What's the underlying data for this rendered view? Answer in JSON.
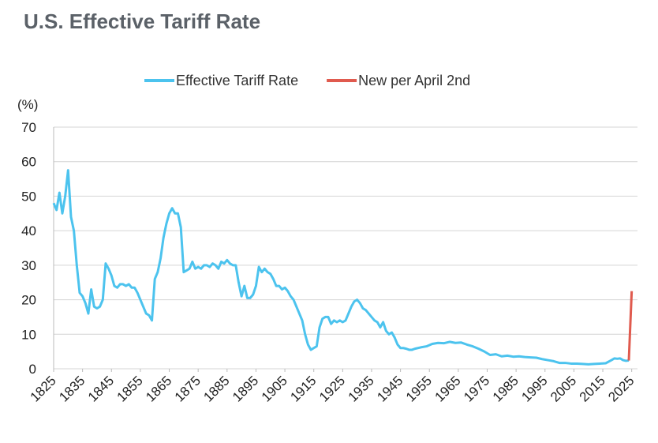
{
  "chart_data": {
    "type": "line",
    "title": "U.S. Effective Tariff Rate",
    "y_label": "(%)",
    "xlim": [
      1825,
      2027
    ],
    "ylim": [
      0,
      70
    ],
    "xticks": [
      1825,
      1835,
      1845,
      1855,
      1865,
      1875,
      1885,
      1895,
      1905,
      1915,
      1925,
      1935,
      1945,
      1955,
      1965,
      1975,
      1985,
      1995,
      2005,
      2015,
      2025
    ],
    "yticks": [
      0,
      10,
      20,
      30,
      40,
      50,
      60,
      70
    ],
    "grid": true,
    "legend": "top",
    "series": [
      {
        "name": "Effective Tariff Rate",
        "color": "#4cc3ee",
        "x": [
          1825,
          1826,
          1827,
          1828,
          1829,
          1830,
          1831,
          1832,
          1833,
          1834,
          1835,
          1836,
          1837,
          1838,
          1839,
          1840,
          1841,
          1842,
          1843,
          1844,
          1845,
          1846,
          1847,
          1848,
          1849,
          1850,
          1851,
          1852,
          1853,
          1854,
          1855,
          1856,
          1857,
          1858,
          1859,
          1860,
          1861,
          1862,
          1863,
          1864,
          1865,
          1866,
          1867,
          1868,
          1869,
          1870,
          1871,
          1872,
          1873,
          1874,
          1875,
          1876,
          1877,
          1878,
          1879,
          1880,
          1881,
          1882,
          1883,
          1884,
          1885,
          1886,
          1887,
          1888,
          1889,
          1890,
          1891,
          1892,
          1893,
          1894,
          1895,
          1896,
          1897,
          1898,
          1899,
          1900,
          1901,
          1902,
          1903,
          1904,
          1905,
          1906,
          1907,
          1908,
          1909,
          1910,
          1911,
          1912,
          1913,
          1914,
          1915,
          1916,
          1917,
          1918,
          1919,
          1920,
          1921,
          1922,
          1923,
          1924,
          1925,
          1926,
          1927,
          1928,
          1929,
          1930,
          1931,
          1932,
          1933,
          1934,
          1935,
          1936,
          1937,
          1938,
          1939,
          1940,
          1941,
          1942,
          1943,
          1944,
          1945,
          1946,
          1947,
          1948,
          1949,
          1950,
          1952,
          1954,
          1956,
          1958,
          1960,
          1962,
          1964,
          1966,
          1968,
          1970,
          1972,
          1974,
          1976,
          1978,
          1980,
          1982,
          1984,
          1986,
          1988,
          1990,
          1992,
          1994,
          1996,
          1998,
          2000,
          2002,
          2004,
          2006,
          2008,
          2010,
          2012,
          2014,
          2016,
          2018,
          2019,
          2020,
          2021,
          2022,
          2023,
          2024
        ],
        "values": [
          48,
          46,
          51,
          45,
          50,
          57.5,
          44,
          40,
          30,
          22,
          21,
          19,
          16,
          23,
          18,
          17.5,
          18,
          20,
          30.5,
          29,
          27,
          24,
          23.5,
          24.5,
          24.5,
          24,
          24.5,
          23.5,
          23.5,
          22,
          20,
          18,
          16,
          15.5,
          14,
          26,
          28,
          32,
          38,
          42,
          45,
          46.5,
          45,
          45,
          41,
          28,
          28.5,
          29,
          31,
          29,
          29.5,
          29,
          30,
          30,
          29.5,
          30.5,
          30,
          29,
          31,
          30.5,
          31.5,
          30.5,
          30,
          30,
          25,
          21,
          24,
          20.5,
          20.5,
          21.5,
          24,
          29.5,
          28,
          29,
          28,
          27.5,
          26,
          24,
          24,
          23,
          23.5,
          22.5,
          21,
          20,
          18,
          16,
          14,
          10,
          7,
          5.5,
          6,
          6.5,
          12,
          14.5,
          15,
          15,
          13,
          14,
          13.5,
          14,
          13.5,
          14,
          16,
          18,
          19.5,
          20,
          19,
          17.5,
          17,
          16,
          15,
          14,
          13.5,
          12,
          13.5,
          11,
          10,
          10.5,
          9,
          7,
          6,
          6,
          5.8,
          5.5,
          5.5,
          5.8,
          6.2,
          6.5,
          7.2,
          7.5,
          7.4,
          7.8,
          7.5,
          7.6,
          7,
          6.5,
          5.8,
          5,
          4,
          4.2,
          3.6,
          3.8,
          3.5,
          3.6,
          3.4,
          3.3,
          3.2,
          2.8,
          2.5,
          2.2,
          1.7,
          1.7,
          1.5,
          1.5,
          1.4,
          1.3,
          1.4,
          1.5,
          1.6,
          2.5,
          3,
          2.9,
          3,
          2.5,
          2.3,
          2.4
        ]
      },
      {
        "name": "New per April 2nd",
        "color": "#e05a4e",
        "x": [
          2024,
          2025
        ],
        "values": [
          2.4,
          22.5
        ]
      }
    ]
  }
}
